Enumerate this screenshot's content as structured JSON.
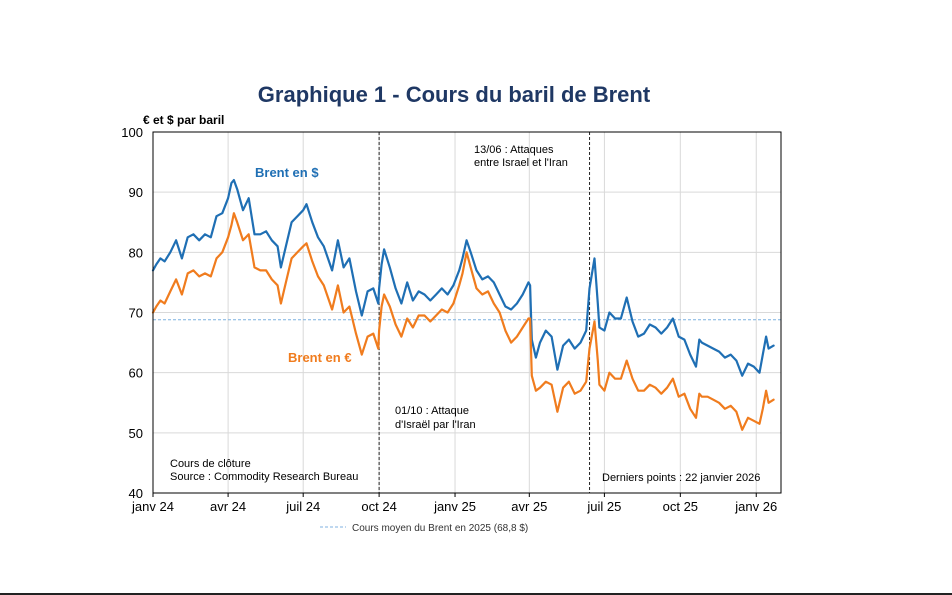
{
  "chart_data": {
    "type": "line",
    "title": "Graphique 1 - Cours du baril de Brent",
    "ylabel": "€ et $ par baril",
    "ylim": [
      40,
      100
    ],
    "yticks": [
      "100",
      "90",
      "80",
      "70",
      "60",
      "50",
      "40"
    ],
    "xlabels": [
      "janv 24",
      "avr 24",
      "juil 24",
      "oct 24",
      "janv 25",
      "avr 25",
      "juil 25",
      "oct 25",
      "janv 26"
    ],
    "x_domain": [
      "2024-01-01",
      "2026-01-31"
    ],
    "series": [
      {
        "name": "Brent en $",
        "color": "#1f6fb4",
        "points": [
          [
            "2024-01-01",
            77
          ],
          [
            "2024-01-05",
            78
          ],
          [
            "2024-01-10",
            79
          ],
          [
            "2024-01-15",
            78.5
          ],
          [
            "2024-01-22",
            80
          ],
          [
            "2024-01-29",
            82
          ],
          [
            "2024-02-05",
            79
          ],
          [
            "2024-02-12",
            82.5
          ],
          [
            "2024-02-19",
            83
          ],
          [
            "2024-02-26",
            82
          ],
          [
            "2024-03-04",
            83
          ],
          [
            "2024-03-11",
            82.5
          ],
          [
            "2024-03-18",
            86
          ],
          [
            "2024-03-25",
            86.5
          ],
          [
            "2024-04-01",
            89
          ],
          [
            "2024-04-05",
            91.5
          ],
          [
            "2024-04-08",
            92
          ],
          [
            "2024-04-12",
            90.5
          ],
          [
            "2024-04-19",
            87
          ],
          [
            "2024-04-26",
            89
          ],
          [
            "2024-05-03",
            83
          ],
          [
            "2024-05-10",
            83
          ],
          [
            "2024-05-17",
            83.5
          ],
          [
            "2024-05-24",
            82
          ],
          [
            "2024-05-31",
            81
          ],
          [
            "2024-06-04",
            77.5
          ],
          [
            "2024-06-10",
            81
          ],
          [
            "2024-06-17",
            85
          ],
          [
            "2024-06-24",
            86
          ],
          [
            "2024-07-01",
            87
          ],
          [
            "2024-07-05",
            88
          ],
          [
            "2024-07-12",
            85
          ],
          [
            "2024-07-19",
            82.5
          ],
          [
            "2024-07-26",
            81
          ],
          [
            "2024-08-05",
            77
          ],
          [
            "2024-08-12",
            82
          ],
          [
            "2024-08-19",
            77.5
          ],
          [
            "2024-08-26",
            79
          ],
          [
            "2024-09-03",
            73.5
          ],
          [
            "2024-09-10",
            69.5
          ],
          [
            "2024-09-17",
            73.5
          ],
          [
            "2024-09-24",
            74
          ],
          [
            "2024-09-30",
            71.5
          ],
          [
            "2024-10-01",
            74
          ],
          [
            "2024-10-04",
            78
          ],
          [
            "2024-10-07",
            80.5
          ],
          [
            "2024-10-14",
            77.5
          ],
          [
            "2024-10-21",
            74
          ],
          [
            "2024-10-28",
            71.5
          ],
          [
            "2024-11-04",
            75
          ],
          [
            "2024-11-11",
            72
          ],
          [
            "2024-11-18",
            73.5
          ],
          [
            "2024-11-25",
            73
          ],
          [
            "2024-12-02",
            72
          ],
          [
            "2024-12-09",
            73
          ],
          [
            "2024-12-16",
            74
          ],
          [
            "2024-12-23",
            73
          ],
          [
            "2024-12-30",
            74.5
          ],
          [
            "2025-01-06",
            77
          ],
          [
            "2025-01-10",
            79
          ],
          [
            "2025-01-15",
            82
          ],
          [
            "2025-01-20",
            80
          ],
          [
            "2025-01-27",
            77
          ],
          [
            "2025-02-03",
            75.5
          ],
          [
            "2025-02-10",
            76
          ],
          [
            "2025-02-17",
            75
          ],
          [
            "2025-02-24",
            73
          ],
          [
            "2025-03-03",
            71
          ],
          [
            "2025-03-10",
            70.5
          ],
          [
            "2025-03-17",
            71.5
          ],
          [
            "2025-03-24",
            73
          ],
          [
            "2025-03-31",
            75
          ],
          [
            "2025-04-02",
            74.5
          ],
          [
            "2025-04-04",
            65.5
          ],
          [
            "2025-04-09",
            62.5
          ],
          [
            "2025-04-14",
            65
          ],
          [
            "2025-04-21",
            67
          ],
          [
            "2025-04-28",
            66
          ],
          [
            "2025-05-05",
            60.5
          ],
          [
            "2025-05-12",
            64.5
          ],
          [
            "2025-05-19",
            65.5
          ],
          [
            "2025-05-26",
            64
          ],
          [
            "2025-06-02",
            65
          ],
          [
            "2025-06-09",
            67
          ],
          [
            "2025-06-13",
            74
          ],
          [
            "2025-06-19",
            79
          ],
          [
            "2025-06-23",
            71.5
          ],
          [
            "2025-06-25",
            67.5
          ],
          [
            "2025-07-01",
            67
          ],
          [
            "2025-07-07",
            70
          ],
          [
            "2025-07-14",
            69
          ],
          [
            "2025-07-21",
            69
          ],
          [
            "2025-07-28",
            72.5
          ],
          [
            "2025-08-04",
            68.5
          ],
          [
            "2025-08-11",
            66
          ],
          [
            "2025-08-18",
            66.5
          ],
          [
            "2025-08-25",
            68
          ],
          [
            "2025-09-01",
            67.5
          ],
          [
            "2025-09-08",
            66.5
          ],
          [
            "2025-09-15",
            67.5
          ],
          [
            "2025-09-22",
            69
          ],
          [
            "2025-09-29",
            66
          ],
          [
            "2025-10-06",
            65.5
          ],
          [
            "2025-10-13",
            63
          ],
          [
            "2025-10-20",
            61
          ],
          [
            "2025-10-24",
            65.5
          ],
          [
            "2025-10-27",
            65
          ],
          [
            "2025-11-03",
            64.5
          ],
          [
            "2025-11-10",
            64
          ],
          [
            "2025-11-17",
            63.5
          ],
          [
            "2025-11-24",
            62.5
          ],
          [
            "2025-12-01",
            63
          ],
          [
            "2025-12-08",
            62
          ],
          [
            "2025-12-15",
            59.5
          ],
          [
            "2025-12-22",
            61.5
          ],
          [
            "2025-12-29",
            61
          ],
          [
            "2026-01-05",
            60
          ],
          [
            "2026-01-09",
            63
          ],
          [
            "2026-01-13",
            66
          ],
          [
            "2026-01-16",
            64
          ],
          [
            "2026-01-22",
            64.5
          ]
        ]
      },
      {
        "name": "Brent en €",
        "color": "#f07c1e",
        "points": [
          [
            "2024-01-01",
            70
          ],
          [
            "2024-01-05",
            71
          ],
          [
            "2024-01-10",
            72
          ],
          [
            "2024-01-15",
            71.5
          ],
          [
            "2024-01-22",
            73.5
          ],
          [
            "2024-01-29",
            75.5
          ],
          [
            "2024-02-05",
            73
          ],
          [
            "2024-02-12",
            76.5
          ],
          [
            "2024-02-19",
            77
          ],
          [
            "2024-02-26",
            76
          ],
          [
            "2024-03-04",
            76.5
          ],
          [
            "2024-03-11",
            76
          ],
          [
            "2024-03-18",
            79
          ],
          [
            "2024-03-25",
            80
          ],
          [
            "2024-04-01",
            82.5
          ],
          [
            "2024-04-05",
            84.5
          ],
          [
            "2024-04-08",
            86.5
          ],
          [
            "2024-04-12",
            85
          ],
          [
            "2024-04-19",
            82
          ],
          [
            "2024-04-26",
            83
          ],
          [
            "2024-05-03",
            77.5
          ],
          [
            "2024-05-10",
            77
          ],
          [
            "2024-05-17",
            77
          ],
          [
            "2024-05-24",
            75.5
          ],
          [
            "2024-05-31",
            74.5
          ],
          [
            "2024-06-04",
            71.5
          ],
          [
            "2024-06-10",
            75
          ],
          [
            "2024-06-17",
            79
          ],
          [
            "2024-06-24",
            80
          ],
          [
            "2024-07-01",
            81
          ],
          [
            "2024-07-05",
            81.5
          ],
          [
            "2024-07-12",
            78.5
          ],
          [
            "2024-07-19",
            76
          ],
          [
            "2024-07-26",
            74.5
          ],
          [
            "2024-08-05",
            70.5
          ],
          [
            "2024-08-12",
            74.5
          ],
          [
            "2024-08-19",
            70
          ],
          [
            "2024-08-26",
            71
          ],
          [
            "2024-09-03",
            66.5
          ],
          [
            "2024-09-10",
            63
          ],
          [
            "2024-09-17",
            66
          ],
          [
            "2024-09-24",
            66.5
          ],
          [
            "2024-09-30",
            64
          ],
          [
            "2024-10-01",
            67
          ],
          [
            "2024-10-04",
            71
          ],
          [
            "2024-10-07",
            73
          ],
          [
            "2024-10-14",
            71
          ],
          [
            "2024-10-21",
            68
          ],
          [
            "2024-10-28",
            66
          ],
          [
            "2024-11-04",
            69
          ],
          [
            "2024-11-11",
            67.5
          ],
          [
            "2024-11-18",
            69.5
          ],
          [
            "2024-11-25",
            69.5
          ],
          [
            "2024-12-02",
            68.5
          ],
          [
            "2024-12-09",
            69.5
          ],
          [
            "2024-12-16",
            70.5
          ],
          [
            "2024-12-23",
            70
          ],
          [
            "2024-12-30",
            71.5
          ],
          [
            "2025-01-06",
            74.5
          ],
          [
            "2025-01-10",
            76.5
          ],
          [
            "2025-01-15",
            80
          ],
          [
            "2025-01-20",
            77.5
          ],
          [
            "2025-01-27",
            74
          ],
          [
            "2025-02-03",
            73
          ],
          [
            "2025-02-10",
            73.5
          ],
          [
            "2025-02-17",
            71.5
          ],
          [
            "2025-02-24",
            70
          ],
          [
            "2025-03-03",
            67
          ],
          [
            "2025-03-10",
            65
          ],
          [
            "2025-03-17",
            66
          ],
          [
            "2025-03-24",
            67.5
          ],
          [
            "2025-03-31",
            69
          ],
          [
            "2025-04-02",
            69
          ],
          [
            "2025-04-04",
            59.5
          ],
          [
            "2025-04-09",
            57
          ],
          [
            "2025-04-14",
            57.5
          ],
          [
            "2025-04-21",
            58.5
          ],
          [
            "2025-04-28",
            58
          ],
          [
            "2025-05-05",
            53.5
          ],
          [
            "2025-05-12",
            57.5
          ],
          [
            "2025-05-19",
            58.5
          ],
          [
            "2025-05-26",
            56.5
          ],
          [
            "2025-06-02",
            57
          ],
          [
            "2025-06-09",
            58.5
          ],
          [
            "2025-06-13",
            64
          ],
          [
            "2025-06-19",
            68.5
          ],
          [
            "2025-06-23",
            62
          ],
          [
            "2025-06-25",
            58
          ],
          [
            "2025-07-01",
            57
          ],
          [
            "2025-07-07",
            60
          ],
          [
            "2025-07-14",
            59
          ],
          [
            "2025-07-21",
            59
          ],
          [
            "2025-07-28",
            62
          ],
          [
            "2025-08-04",
            59
          ],
          [
            "2025-08-11",
            57
          ],
          [
            "2025-08-18",
            57
          ],
          [
            "2025-08-25",
            58
          ],
          [
            "2025-09-01",
            57.5
          ],
          [
            "2025-09-08",
            56.5
          ],
          [
            "2025-09-15",
            57.5
          ],
          [
            "2025-09-22",
            59
          ],
          [
            "2025-09-29",
            56
          ],
          [
            "2025-10-06",
            56.5
          ],
          [
            "2025-10-13",
            54
          ],
          [
            "2025-10-20",
            52.5
          ],
          [
            "2025-10-24",
            56.5
          ],
          [
            "2025-10-27",
            56
          ],
          [
            "2025-11-03",
            56
          ],
          [
            "2025-11-10",
            55.5
          ],
          [
            "2025-11-17",
            55
          ],
          [
            "2025-11-24",
            54
          ],
          [
            "2025-12-01",
            54.5
          ],
          [
            "2025-12-08",
            53.5
          ],
          [
            "2025-12-15",
            50.5
          ],
          [
            "2025-12-22",
            52.5
          ],
          [
            "2025-12-29",
            52
          ],
          [
            "2026-01-05",
            51.5
          ],
          [
            "2026-01-09",
            54
          ],
          [
            "2026-01-13",
            57
          ],
          [
            "2026-01-16",
            55
          ],
          [
            "2026-01-22",
            55.5
          ]
        ]
      }
    ],
    "reference_line": {
      "label": "Cours moyen du Brent en 2025 (68,8 $)",
      "value": 68.8,
      "color": "#7fb2e0"
    },
    "events": [
      {
        "date": "2024-10-01",
        "label_lines": [
          "01/10 : Attaque",
          "d'Israël par l'Iran"
        ]
      },
      {
        "date": "2025-06-13",
        "label_lines": [
          "13/06 : Attaques",
          "entre Israel et l'Iran"
        ]
      }
    ],
    "annotations": {
      "series_usd_label": "Brent en $",
      "series_eur_label": "Brent en €",
      "note_line1": "Cours de clôture",
      "note_line2": "Source : Commodity Research Bureau",
      "last_points": "Derniers points : 22 janvier 2026"
    },
    "grid": true,
    "legend_position": "bottom"
  }
}
